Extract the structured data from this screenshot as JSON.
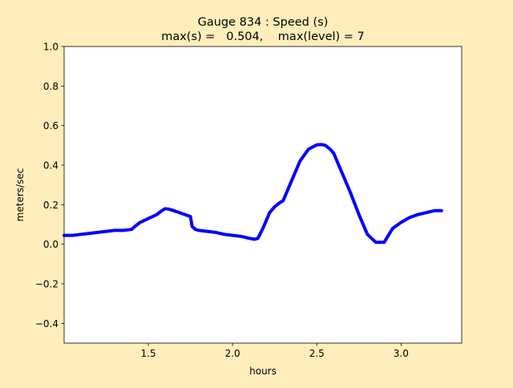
{
  "chart_data": {
    "type": "line",
    "title": "Gauge 834 : Speed (s)",
    "subtitle": "max(s) =   0.504,    max(level) = 7",
    "xlabel": "hours",
    "ylabel": "meters/sec",
    "xlim": [
      1.0,
      3.36
    ],
    "ylim": [
      -0.5,
      1.0
    ],
    "xticks": [
      1.5,
      2.0,
      2.5,
      3.0
    ],
    "xtick_labels": [
      "1.5",
      "2.0",
      "2.5",
      "3.0"
    ],
    "yticks": [
      -0.4,
      -0.2,
      0.0,
      0.2,
      0.4,
      0.6,
      0.8,
      1.0
    ],
    "ytick_labels": [
      "−0.4",
      "−0.2",
      "0.0",
      "0.2",
      "0.4",
      "0.6",
      "0.8",
      "1.0"
    ],
    "grid": false,
    "series": [
      {
        "color": "#0000ff",
        "x": [
          1.0,
          1.05,
          1.1,
          1.15,
          1.2,
          1.25,
          1.3,
          1.35,
          1.4,
          1.42,
          1.45,
          1.5,
          1.55,
          1.58,
          1.6,
          1.62,
          1.65,
          1.7,
          1.75,
          1.76,
          1.78,
          1.8,
          1.85,
          1.9,
          1.95,
          2.0,
          2.05,
          2.1,
          2.13,
          2.15,
          2.18,
          2.2,
          2.22,
          2.25,
          2.28,
          2.3,
          2.35,
          2.4,
          2.45,
          2.5,
          2.53,
          2.55,
          2.58,
          2.6,
          2.65,
          2.7,
          2.75,
          2.8,
          2.85,
          2.9,
          2.95,
          3.0,
          3.05,
          3.1,
          3.15,
          3.2,
          3.24
        ],
        "y": [
          0.045,
          0.045,
          0.05,
          0.055,
          0.06,
          0.065,
          0.07,
          0.07,
          0.075,
          0.09,
          0.11,
          0.13,
          0.15,
          0.17,
          0.18,
          0.178,
          0.17,
          0.155,
          0.14,
          0.09,
          0.075,
          0.07,
          0.065,
          0.06,
          0.05,
          0.045,
          0.04,
          0.03,
          0.025,
          0.03,
          0.08,
          0.12,
          0.16,
          0.19,
          0.21,
          0.22,
          0.32,
          0.42,
          0.48,
          0.503,
          0.504,
          0.5,
          0.48,
          0.46,
          0.36,
          0.26,
          0.15,
          0.05,
          0.01,
          0.01,
          0.08,
          0.11,
          0.135,
          0.15,
          0.16,
          0.17,
          0.17
        ]
      }
    ]
  }
}
